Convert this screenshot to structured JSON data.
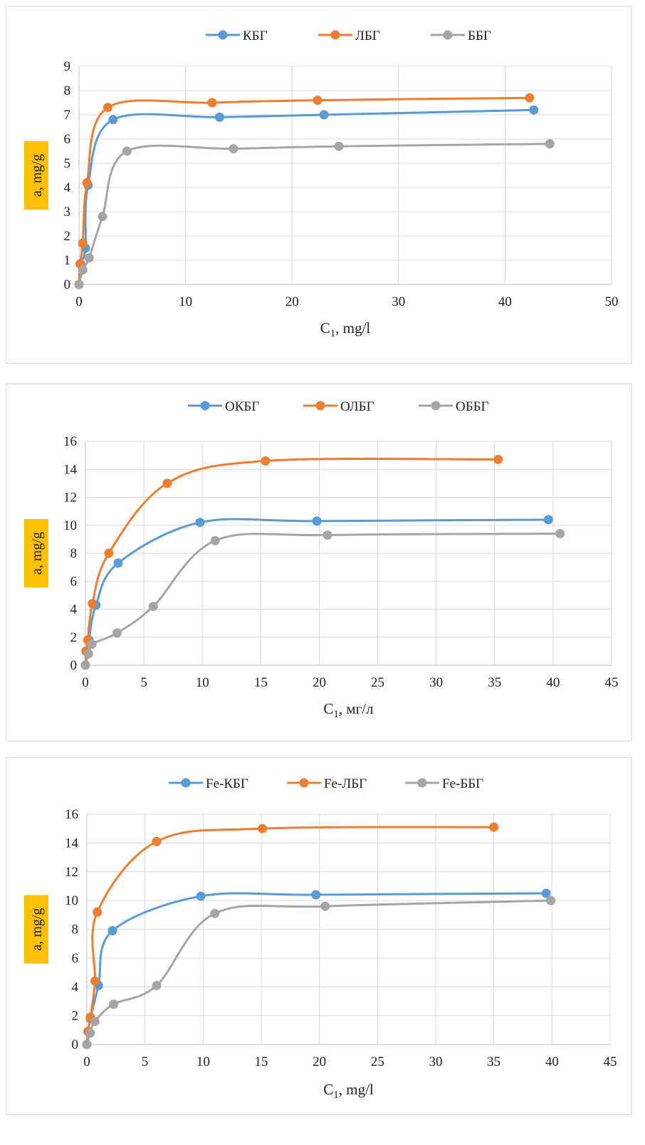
{
  "chart_data": [
    {
      "type": "line",
      "xlabel": "C",
      "xlabel_sub": "1",
      "xlabel_unit": ", mg/l",
      "ylabel": "a, mg/g",
      "xlim": [
        0,
        50
      ],
      "ylim": [
        0,
        9
      ],
      "xticks": [
        0,
        10,
        20,
        30,
        40,
        50
      ],
      "yticks": [
        0,
        1,
        2,
        3,
        4,
        5,
        6,
        7,
        8,
        9
      ],
      "legend_position": "top",
      "grid": true,
      "series": [
        {
          "name": "КБГ",
          "color": "#5b9bd5",
          "x": [
            0,
            0.15,
            0.6,
            0.85,
            3.2,
            13.2,
            23.0,
            42.7
          ],
          "y": [
            0,
            0.85,
            1.5,
            4.1,
            6.8,
            6.9,
            7.0,
            7.2
          ]
        },
        {
          "name": "ЛБГ",
          "color": "#ed7d31",
          "x": [
            0,
            0.1,
            0.35,
            0.75,
            2.7,
            12.5,
            22.4,
            42.3
          ],
          "y": [
            0,
            0.85,
            1.7,
            4.2,
            7.3,
            7.5,
            7.6,
            7.7
          ]
        },
        {
          "name": "ББГ",
          "color": "#a5a5a5",
          "x": [
            0,
            0.35,
            0.95,
            2.2,
            4.5,
            14.5,
            24.4,
            44.2
          ],
          "y": [
            0,
            0.6,
            1.1,
            2.8,
            5.5,
            5.6,
            5.7,
            5.8
          ]
        }
      ]
    },
    {
      "type": "line",
      "xlabel": "C",
      "xlabel_sub": "1",
      "xlabel_unit": ", мг/л",
      "ylabel": "a, mg/g",
      "xlim": [
        0,
        45
      ],
      "ylim": [
        0,
        16
      ],
      "xticks": [
        0,
        5,
        10,
        15,
        20,
        25,
        30,
        35,
        40,
        45
      ],
      "yticks": [
        0,
        2,
        4,
        6,
        8,
        10,
        12,
        14,
        16
      ],
      "legend_position": "top",
      "grid": true,
      "series": [
        {
          "name": "ОКБГ",
          "color": "#5b9bd5",
          "x": [
            0,
            0.1,
            0.3,
            0.9,
            2.8,
            9.8,
            19.8,
            39.6
          ],
          "y": [
            0,
            1.0,
            1.8,
            4.3,
            7.3,
            10.2,
            10.3,
            10.4
          ]
        },
        {
          "name": "ОЛБГ",
          "color": "#ed7d31",
          "x": [
            0,
            0.05,
            0.2,
            0.6,
            2.0,
            7.0,
            15.4,
            35.3
          ],
          "y": [
            0,
            1.0,
            1.8,
            4.4,
            8.0,
            13.0,
            14.6,
            14.7
          ]
        },
        {
          "name": "ОББГ",
          "color": "#a5a5a5",
          "x": [
            0,
            0.25,
            0.55,
            2.7,
            5.8,
            11.1,
            20.7,
            40.6
          ],
          "y": [
            0,
            0.8,
            1.5,
            2.3,
            4.2,
            8.9,
            9.3,
            9.4
          ]
        }
      ]
    },
    {
      "type": "line",
      "xlabel": "C",
      "xlabel_sub": "1",
      "xlabel_unit": ", mg/l",
      "ylabel": "a, mg/g",
      "xlim": [
        0,
        45
      ],
      "ylim": [
        0,
        16
      ],
      "xticks": [
        0,
        5,
        10,
        15,
        20,
        25,
        30,
        35,
        40,
        45
      ],
      "yticks": [
        0,
        2,
        4,
        6,
        8,
        10,
        12,
        14,
        16
      ],
      "legend_position": "top",
      "grid": true,
      "series": [
        {
          "name": "Fe-КБГ",
          "color": "#5b9bd5",
          "x": [
            0,
            0.1,
            0.3,
            1.0,
            2.2,
            9.8,
            19.7,
            39.5
          ],
          "y": [
            0,
            0.9,
            1.8,
            4.1,
            7.9,
            10.3,
            10.4,
            10.5
          ]
        },
        {
          "name": "Fe-ЛБГ",
          "color": "#ed7d31",
          "x": [
            0,
            0.1,
            0.3,
            0.7,
            0.9,
            6.0,
            15.1,
            35.0
          ],
          "y": [
            0,
            0.9,
            1.9,
            4.4,
            9.2,
            14.1,
            15.0,
            15.1
          ]
        },
        {
          "name": "Fe-ББГ",
          "color": "#a5a5a5",
          "x": [
            0,
            0.3,
            0.7,
            2.3,
            6.0,
            11.0,
            20.5,
            39.9
          ],
          "y": [
            0,
            0.8,
            1.6,
            2.8,
            4.1,
            9.1,
            9.6,
            10.0
          ]
        }
      ]
    }
  ]
}
